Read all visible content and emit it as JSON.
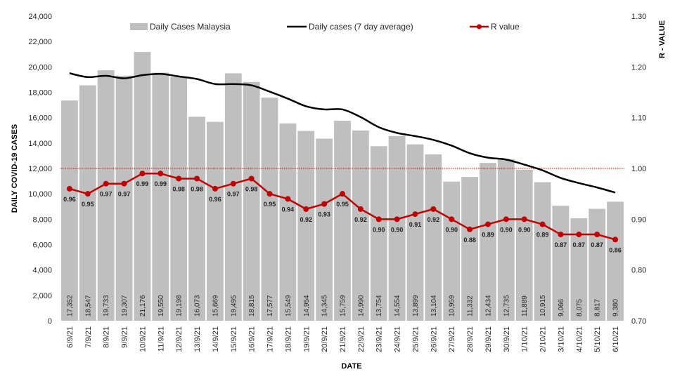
{
  "chart_data": {
    "type": "bar",
    "categories": [
      "6/9/21",
      "7/9/21",
      "8/9/21",
      "9/9/21",
      "10/9/21",
      "11/9/21",
      "12/9/21",
      "13/9/21",
      "14/9/21",
      "15/9/21",
      "16/9/21",
      "17/9/21",
      "18/9/21",
      "19/9/21",
      "20/9/21",
      "21/9/21",
      "22/9/21",
      "23/9/21",
      "24/9/21",
      "25/9/21",
      "26/9/21",
      "27/9/21",
      "28/9/21",
      "29/9/21",
      "30/9/21",
      "1/10/21",
      "2/10/21",
      "3/10/21",
      "4/10/21",
      "5/10/21",
      "6/10/21"
    ],
    "series": [
      {
        "name": "Daily Cases Malaysia",
        "type": "bar",
        "axis": "left",
        "color": "#bfbfbf",
        "values": [
          17352,
          18547,
          19733,
          19307,
          21176,
          19550,
          19198,
          16073,
          15669,
          19495,
          18815,
          17577,
          15549,
          14954,
          14345,
          15759,
          14990,
          13754,
          14554,
          13899,
          13104,
          10959,
          11332,
          12434,
          12735,
          11889,
          10915,
          9066,
          8075,
          8817,
          9380
        ],
        "labels": [
          "17,352",
          "18,547",
          "19,733",
          "19,307",
          "21,176",
          "19,550",
          "19,198",
          "16,073",
          "15,669",
          "19,495",
          "18,815",
          "17,577",
          "15,549",
          "14,954",
          "14,345",
          "15,759",
          "14,990",
          "13,754",
          "14,554",
          "13,899",
          "13,104",
          "10,959",
          "11,332",
          "12,434",
          "12,735",
          "11,889",
          "10,915",
          "9,066",
          "8,075",
          "8,817",
          "9,380"
        ]
      },
      {
        "name": "Daily cases (7 day average)",
        "type": "line",
        "axis": "left",
        "color": "#000000",
        "values": [
          19500,
          19200,
          19300,
          19100,
          19350,
          19450,
          19250,
          19050,
          18650,
          18650,
          18550,
          18050,
          17500,
          16900,
          16650,
          16650,
          16050,
          15250,
          14800,
          14550,
          14250,
          13800,
          13200,
          12850,
          12700,
          12300,
          11850,
          11250,
          10850,
          10500,
          10100
        ]
      },
      {
        "name": "R value",
        "type": "line",
        "axis": "right",
        "color": "#c00000",
        "values": [
          0.96,
          0.95,
          0.97,
          0.97,
          0.99,
          0.99,
          0.98,
          0.98,
          0.96,
          0.97,
          0.98,
          0.95,
          0.94,
          0.92,
          0.93,
          0.95,
          0.92,
          0.9,
          0.9,
          0.91,
          0.92,
          0.9,
          0.88,
          0.89,
          0.9,
          0.9,
          0.89,
          0.87,
          0.87,
          0.87,
          0.86
        ],
        "labels": [
          "0.96",
          "0.95",
          "0.97",
          "0.97",
          "0.99",
          "0.99",
          "0.98",
          "0.98",
          "0.96",
          "0.97",
          "0.98",
          "0.95",
          "0.94",
          "0.92",
          "0.93",
          "0.95",
          "0.92",
          "0.90",
          "0.90",
          "0.91",
          "0.92",
          "0.90",
          "0.88",
          "0.89",
          "0.90",
          "0.90",
          "0.89",
          "0.87",
          "0.87",
          "0.87",
          "0.86"
        ]
      }
    ],
    "reference_line": {
      "axis": "right",
      "value": 1.0,
      "color": "#c00000",
      "style": "dotted"
    },
    "ylim_left": [
      0,
      24000
    ],
    "yticks_left": [
      "0",
      "2,000",
      "4,000",
      "6,000",
      "8,000",
      "10,000",
      "12,000",
      "14,000",
      "16,000",
      "18,000",
      "20,000",
      "22,000",
      "24,000"
    ],
    "ylim_right": [
      0.7,
      1.3
    ],
    "yticks_right": [
      "0.70",
      "0.80",
      "0.90",
      "1.00",
      "1.10",
      "1.20",
      "1.30"
    ],
    "xlabel": "DATE",
    "ylabel_left": "DAILY COVID-19 CASES",
    "ylabel_right": "R - VALUE",
    "legend_position": "top",
    "grid": false
  }
}
